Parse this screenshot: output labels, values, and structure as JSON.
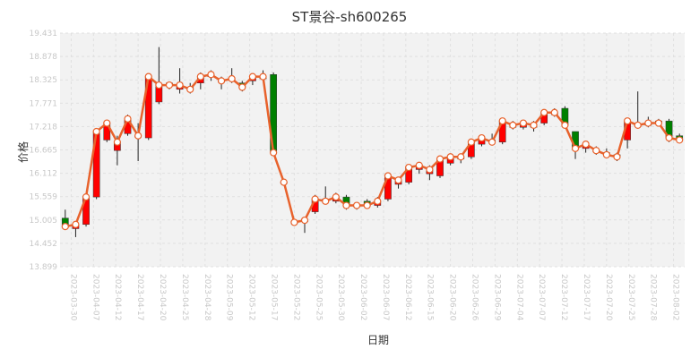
{
  "chart_data": {
    "type": "candlestick",
    "title": "ST景谷-sh600265",
    "xlabel": "日期",
    "ylabel": "价格",
    "ylim": [
      13.899,
      19.431
    ],
    "y_ticks": [
      "19.431",
      "18.878",
      "18.325",
      "17.771",
      "17.218",
      "16.665",
      "16.112",
      "15.559",
      "15.005",
      "14.452",
      "13.899"
    ],
    "grid": true,
    "x_ticks": [
      "2023-03-30",
      "2023-04-07",
      "2023-04-12",
      "2023-04-17",
      "2023-04-20",
      "2023-04-25",
      "2023-04-28",
      "2023-05-09",
      "2023-05-12",
      "2023-05-17",
      "2023-05-22",
      "2023-05-25",
      "2023-05-30",
      "2023-06-02",
      "2023-06-07",
      "2023-06-12",
      "2023-06-15",
      "2023-06-20",
      "2023-06-26",
      "2023-06-29",
      "2023-07-04",
      "2023-07-07",
      "2023-07-12",
      "2023-07-17",
      "2023-07-20",
      "2023-07-25",
      "2023-07-28",
      "2023-08-02"
    ],
    "colors": {
      "up": "#ff0000",
      "down": "#008000",
      "line": "#e8622c",
      "plot_bg": "#f2f2f2",
      "grid": "#e0e0e0"
    },
    "candles": [
      [
        15.05,
        14.85,
        15.25,
        14.8
      ],
      [
        14.8,
        14.9,
        14.95,
        14.6
      ],
      [
        14.9,
        15.55,
        15.6,
        14.85
      ],
      [
        15.55,
        17.1,
        17.15,
        15.5
      ],
      [
        16.9,
        17.3,
        17.35,
        16.85
      ],
      [
        16.65,
        16.85,
        17.0,
        16.3
      ],
      [
        17.05,
        17.4,
        17.5,
        17.0
      ],
      [
        17.0,
        17.0,
        17.3,
        16.4
      ],
      [
        16.95,
        18.4,
        18.45,
        16.9
      ],
      [
        17.8,
        18.2,
        19.1,
        17.75
      ],
      [
        18.25,
        18.2,
        18.25,
        18.1
      ],
      [
        18.1,
        18.2,
        18.6,
        18.0
      ],
      [
        18.15,
        18.1,
        18.25,
        18.0
      ],
      [
        18.25,
        18.4,
        18.5,
        18.1
      ],
      [
        18.4,
        18.45,
        18.55,
        18.3
      ],
      [
        18.3,
        18.3,
        18.4,
        18.1
      ],
      [
        18.35,
        18.35,
        18.6,
        18.25
      ],
      [
        18.25,
        18.15,
        18.3,
        18.05
      ],
      [
        18.3,
        18.4,
        18.45,
        18.2
      ],
      [
        18.35,
        18.4,
        18.55,
        18.3
      ],
      [
        18.45,
        16.6,
        18.5,
        16.55
      ],
      [
        15.9,
        15.9,
        15.9,
        15.9
      ],
      [
        14.95,
        14.95,
        15.0,
        14.9
      ],
      [
        15.0,
        15.0,
        15.05,
        14.7
      ],
      [
        15.2,
        15.5,
        15.6,
        15.15
      ],
      [
        15.5,
        15.45,
        15.8,
        15.4
      ],
      [
        15.45,
        15.55,
        15.65,
        15.4
      ],
      [
        15.55,
        15.35,
        15.6,
        15.25
      ],
      [
        15.35,
        15.35,
        15.4,
        15.25
      ],
      [
        15.45,
        15.35,
        15.5,
        15.3
      ],
      [
        15.35,
        15.45,
        15.55,
        15.3
      ],
      [
        15.5,
        16.05,
        16.1,
        15.45
      ],
      [
        15.85,
        15.95,
        15.95,
        15.75
      ],
      [
        15.9,
        16.25,
        16.3,
        15.85
      ],
      [
        16.2,
        16.3,
        16.3,
        16.1
      ],
      [
        16.1,
        16.2,
        16.3,
        15.95
      ],
      [
        16.05,
        16.45,
        16.5,
        16.0
      ],
      [
        16.35,
        16.5,
        16.55,
        16.3
      ],
      [
        16.45,
        16.5,
        16.55,
        16.35
      ],
      [
        16.5,
        16.85,
        16.9,
        16.45
      ],
      [
        16.8,
        16.95,
        17.0,
        16.75
      ],
      [
        16.9,
        16.85,
        17.05,
        16.8
      ],
      [
        16.85,
        17.35,
        17.4,
        16.8
      ],
      [
        17.2,
        17.25,
        17.35,
        17.15
      ],
      [
        17.2,
        17.3,
        17.35,
        17.15
      ],
      [
        17.2,
        17.25,
        17.35,
        17.1
      ],
      [
        17.3,
        17.55,
        17.6,
        17.25
      ],
      [
        17.5,
        17.55,
        17.65,
        17.45
      ],
      [
        17.65,
        17.25,
        17.7,
        17.2
      ],
      [
        17.1,
        16.7,
        17.1,
        16.45
      ],
      [
        16.7,
        16.8,
        16.85,
        16.6
      ],
      [
        16.65,
        16.65,
        16.75,
        16.55
      ],
      [
        16.6,
        16.55,
        16.7,
        16.5
      ],
      [
        16.55,
        16.5,
        16.6,
        16.4
      ],
      [
        16.9,
        17.35,
        17.4,
        16.7
      ],
      [
        17.25,
        17.25,
        18.05,
        17.2
      ],
      [
        17.25,
        17.3,
        17.45,
        17.2
      ],
      [
        17.35,
        17.3,
        17.4,
        17.25
      ],
      [
        17.35,
        16.95,
        17.4,
        16.85
      ],
      [
        17.0,
        16.9,
        17.05,
        16.85
      ]
    ]
  }
}
